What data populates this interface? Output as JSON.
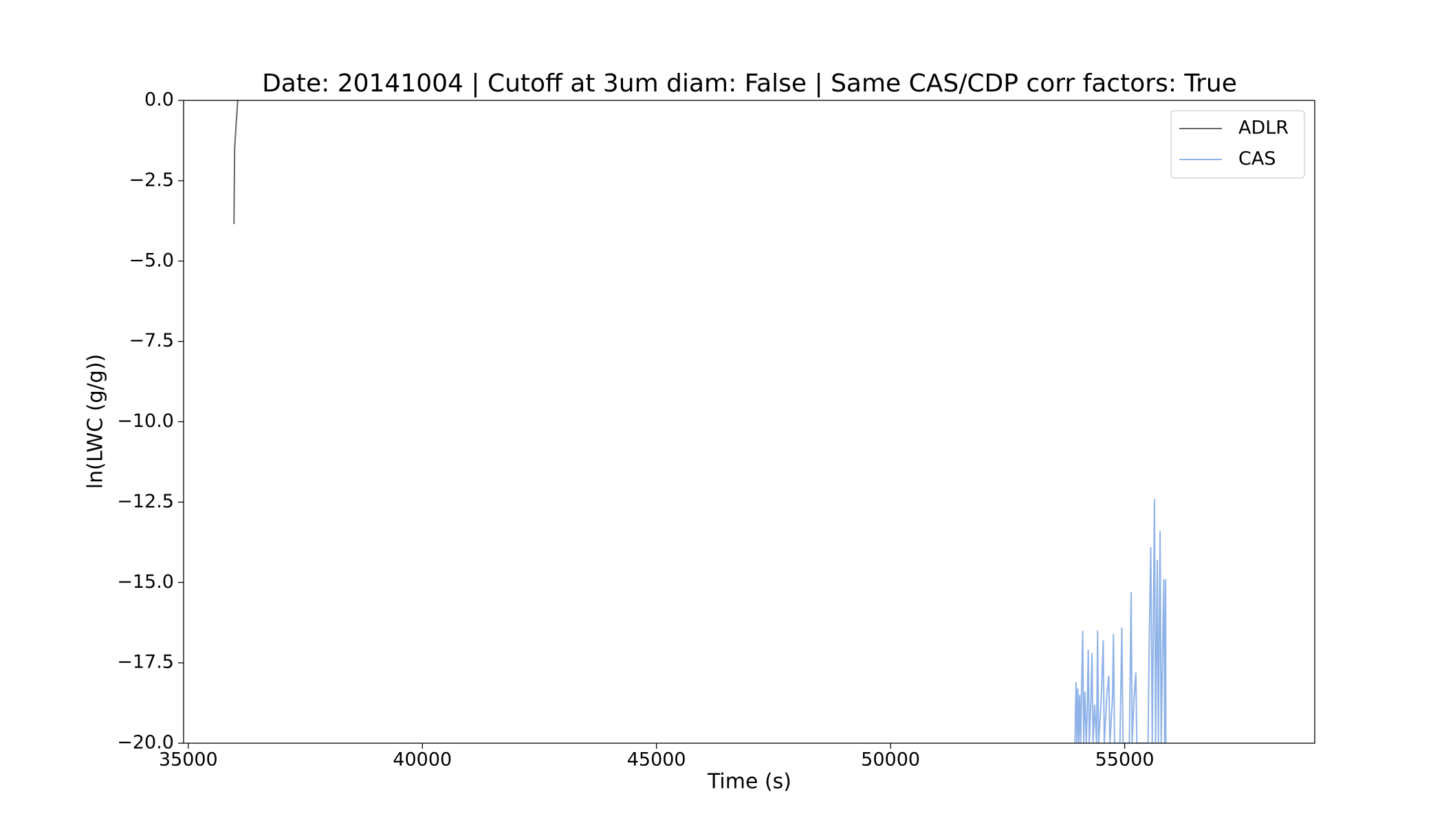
{
  "chart_data": {
    "type": "line",
    "title": "Date: 20141004 | Cutoff at 3um diam: False | Same CAS/CDP corr factors: True",
    "xlabel": "Time (s)",
    "ylabel": "ln(LWC (g/g))",
    "xlim": [
      34900,
      59060
    ],
    "ylim": [
      -20,
      0
    ],
    "xticks": [
      35000,
      40000,
      45000,
      50000,
      55000
    ],
    "yticks": [
      {
        "value": 0,
        "label": "0.0"
      },
      {
        "value": -2.5,
        "label": "−2.5"
      },
      {
        "value": -5,
        "label": "−5.0"
      },
      {
        "value": -7.5,
        "label": "−7.5"
      },
      {
        "value": -10,
        "label": "−10.0"
      },
      {
        "value": -12.5,
        "label": "−12.5"
      },
      {
        "value": -15,
        "label": "−15.0"
      },
      {
        "value": -17.5,
        "label": "−17.5"
      },
      {
        "value": -20,
        "label": "−20.0"
      }
    ],
    "legend": "upper right",
    "series": [
      {
        "name": "ADLR",
        "color": "#666666",
        "x": [
          35976,
          35990,
          36020,
          36056
        ],
        "values": [
          -3.85,
          -1.5,
          -0.8,
          0
        ]
      },
      {
        "name": "CAS",
        "color": "#8fb3e8",
        "x": [
          53940,
          53950,
          53964,
          53980,
          54000,
          54020,
          54040,
          54060,
          54080,
          54104,
          54125,
          54150,
          54180,
          54200,
          54223,
          54245,
          54280,
          54303,
          54325,
          54360,
          54400,
          54422,
          54445,
          54500,
          54542,
          54565,
          54620,
          54661,
          54685,
          54740,
          54761,
          54785,
          54900,
          54940,
          54965,
          55100,
          55139,
          55160,
          55200,
          55239,
          55260,
          55500,
          55520,
          55558,
          55590,
          55637,
          55660,
          55697,
          55720,
          55757,
          55780,
          55800,
          55837,
          55855,
          55876,
          55880
        ],
        "values": [
          -20,
          -19,
          -18.1,
          -20,
          -18.3,
          -20,
          -18.5,
          -20,
          -18.4,
          -16.5,
          -20,
          -18.4,
          -20,
          -19,
          -17.1,
          -20,
          -18.6,
          -17.2,
          -20,
          -18.8,
          -20,
          -16.5,
          -20,
          -18.6,
          -16.8,
          -20,
          -18.5,
          -17.9,
          -20,
          -18.6,
          -16.6,
          -20,
          -20,
          -16.4,
          -20,
          -20,
          -15.3,
          -20,
          -18.6,
          -17.8,
          -20,
          -20,
          -17.4,
          -13.9,
          -20,
          -12.4,
          -20,
          -14.3,
          -20,
          -13.4,
          -20,
          -18.1,
          -14.9,
          -20,
          -14.9,
          -20
        ]
      }
    ]
  }
}
